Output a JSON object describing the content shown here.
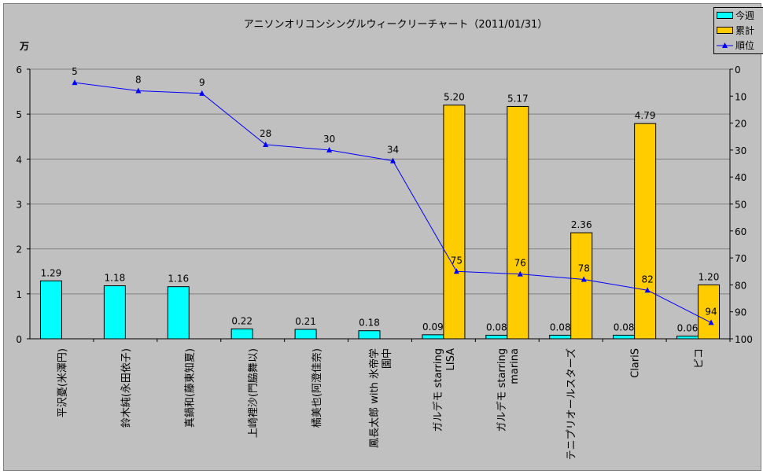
{
  "chart_data": {
    "type": "bar+line",
    "title": "アニソンオリコンシングルウィークリーチャート（2011/01/31）",
    "y_left_unit": "万",
    "ylim_left": [
      0,
      6
    ],
    "yticks_left": [
      "0",
      "1",
      "2",
      "3",
      "4",
      "5",
      "6"
    ],
    "ylim_right": [
      0,
      100
    ],
    "right_axis_inverted": true,
    "yticks_right": [
      "0",
      "10",
      "20",
      "30",
      "40",
      "50",
      "60",
      "70",
      "80",
      "90",
      "100"
    ],
    "grid": true,
    "legend_position": "top-right",
    "categories": [
      "平沢憂(米澤円)",
      "鈴木純(永田依子)",
      "真鍋和(藤東知夏)",
      "上崎裡沙(門脇舞以)",
      "橘美也(阿澄佳奈)",
      "鳳長太郎 with 氷帝学園中",
      "ガルデモ starring LISA",
      "ガルデモ starring marina",
      "テニプリオールスターズ",
      "ClariS",
      "ピコ"
    ],
    "series": [
      {
        "name": "今週",
        "type": "bar",
        "color": "#00ffff",
        "values": [
          1.29,
          1.18,
          1.16,
          0.22,
          0.21,
          0.18,
          0.09,
          0.08,
          0.08,
          0.08,
          0.06
        ],
        "labels": [
          "1.29",
          "1.18",
          "1.16",
          "0.22",
          "0.21",
          "0.18",
          "0.09",
          "0.08",
          "0.08",
          "0.08",
          "0.06"
        ]
      },
      {
        "name": "累計",
        "type": "bar",
        "color": "#ffcc00",
        "values": [
          null,
          null,
          null,
          null,
          null,
          null,
          5.2,
          5.17,
          2.36,
          4.79,
          1.2
        ],
        "labels": [
          "",
          "",
          "",
          "",
          "",
          "",
          "5.20",
          "5.17",
          "2.36",
          "4.79",
          "1.20"
        ]
      },
      {
        "name": "順位",
        "type": "line",
        "axis": "right",
        "color": "#0000ff",
        "values": [
          5,
          8,
          9,
          28,
          30,
          34,
          75,
          76,
          78,
          82,
          94
        ]
      }
    ]
  }
}
